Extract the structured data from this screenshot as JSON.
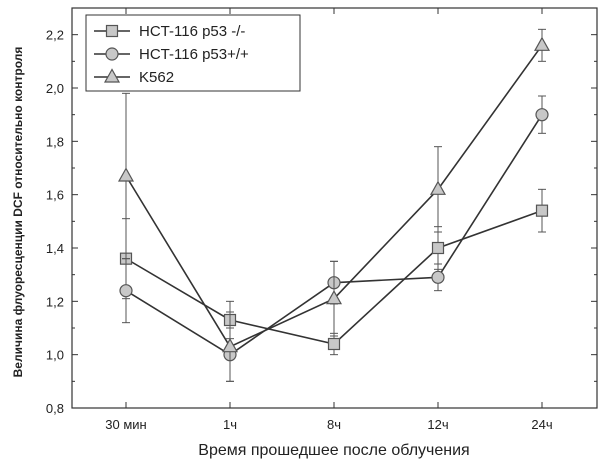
{
  "chart_data": {
    "type": "line",
    "categories": [
      "30 мин",
      "1ч",
      "8ч",
      "12ч",
      "24ч"
    ],
    "xlabel": "Время прошедшее после облучения",
    "ylabel": "Величина флуоресценции DCF относительно контроля",
    "ylim": [
      0.8,
      2.3
    ],
    "yticks": [
      0.8,
      1.0,
      1.2,
      1.4,
      1.6,
      1.8,
      2.0,
      2.2
    ],
    "ytick_labels": [
      "0,8",
      "1,0",
      "1,2",
      "1,4",
      "1,6",
      "1,8",
      "2,0",
      "2,2"
    ],
    "grid": false,
    "legend_position": "top-left",
    "series": [
      {
        "name": "HCT-116 p53 -/-",
        "marker": "square",
        "values": [
          1.36,
          1.13,
          1.04,
          1.4,
          1.54
        ],
        "errors": [
          0.15,
          0.07,
          0.04,
          0.08,
          0.08
        ]
      },
      {
        "name": "HCT-116 p53+/+",
        "marker": "circle",
        "values": [
          1.24,
          1.0,
          1.27,
          1.29,
          1.9
        ],
        "errors": [
          0.12,
          0.1,
          0.08,
          0.05,
          0.07
        ]
      },
      {
        "name": "K562",
        "marker": "triangle",
        "values": [
          1.67,
          1.03,
          1.21,
          1.62,
          2.16
        ],
        "errors": [
          0.31,
          0.13,
          0.14,
          0.16,
          0.06
        ]
      }
    ]
  }
}
